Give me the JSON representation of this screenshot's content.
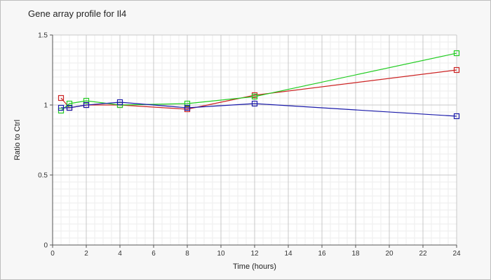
{
  "chart_data": {
    "type": "line",
    "title": "Gene array profile for Il4",
    "xlabel": "Time (hours)",
    "ylabel": "Ratio to Ctrl",
    "xlim": [
      0,
      24
    ],
    "ylim": [
      0,
      1.5
    ],
    "x_ticks": [
      0,
      2,
      4,
      6,
      8,
      10,
      12,
      14,
      16,
      18,
      20,
      22,
      24
    ],
    "y_ticks": [
      0,
      0.5,
      1,
      1.5
    ],
    "y_tick_labels": [
      "0",
      "0.5",
      "1",
      "1.5"
    ],
    "grid": true,
    "legend": "none",
    "series": [
      {
        "color": "#cc2222",
        "x": [
          0.5,
          1,
          2,
          4,
          8,
          12,
          24
        ],
        "values": [
          1.05,
          0.98,
          1.0,
          1.0,
          0.97,
          1.07,
          1.25
        ]
      },
      {
        "color": "#22cc22",
        "x": [
          0.5,
          1,
          2,
          4,
          8,
          12,
          24
        ],
        "values": [
          0.96,
          1.01,
          1.03,
          1.0,
          1.01,
          1.06,
          1.37
        ]
      },
      {
        "color": "#1a1aaa",
        "x": [
          0.5,
          1,
          2,
          4,
          8,
          12,
          24
        ],
        "values": [
          0.98,
          0.98,
          1.0,
          1.02,
          0.98,
          1.01,
          0.92
        ]
      }
    ]
  }
}
